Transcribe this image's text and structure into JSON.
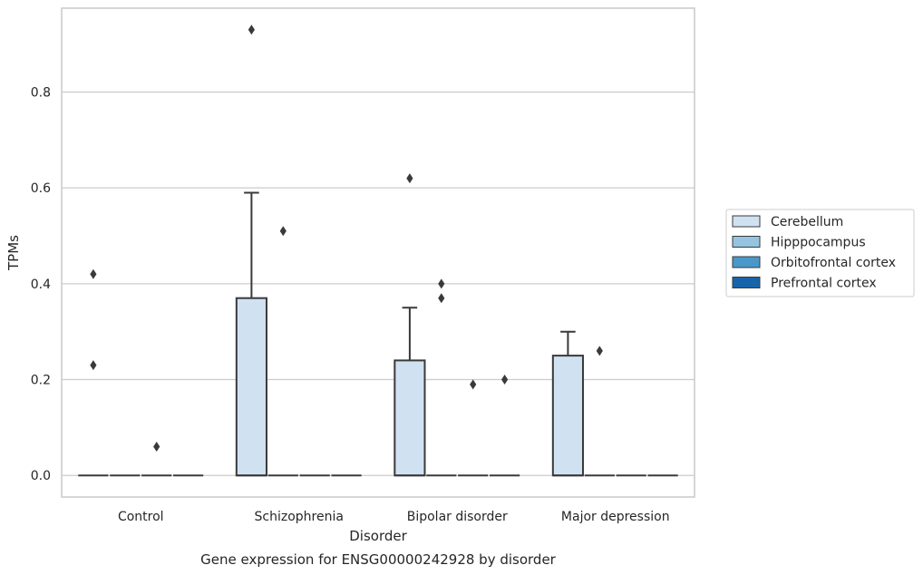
{
  "chart_data": {
    "type": "box",
    "title": "",
    "caption": "Gene expression for ENSG00000242928 by disorder",
    "xlabel": "Disorder",
    "ylabel": "TPMs",
    "ylim": [
      -0.045,
      0.975
    ],
    "yticks": [
      0.0,
      0.2,
      0.4,
      0.6,
      0.8
    ],
    "ytick_labels": [
      "0.0",
      "0.2",
      "0.4",
      "0.6",
      "0.8"
    ],
    "grid": "horizontal",
    "legend_position": "right",
    "categories": [
      "Control",
      "Schizophrenia",
      "Bipolar disorder",
      "Major depression"
    ],
    "series": [
      {
        "name": "Cerebellum",
        "color": "#d0e1f2",
        "boxes": [
          {
            "category": "Control",
            "q1": 0.0,
            "median": 0.0,
            "q3": 0.0,
            "whisker_low": 0.0,
            "whisker_high": 0.0,
            "outliers": [
              0.42,
              0.23
            ]
          },
          {
            "category": "Schizophrenia",
            "q1": 0.0,
            "median": 0.0,
            "q3": 0.37,
            "whisker_low": 0.0,
            "whisker_high": 0.59,
            "outliers": [
              0.93
            ]
          },
          {
            "category": "Bipolar disorder",
            "q1": 0.0,
            "median": 0.0,
            "q3": 0.24,
            "whisker_low": 0.0,
            "whisker_high": 0.35,
            "outliers": [
              0.62
            ]
          },
          {
            "category": "Major depression",
            "q1": 0.0,
            "median": 0.0,
            "q3": 0.25,
            "whisker_low": 0.0,
            "whisker_high": 0.3,
            "outliers": []
          }
        ]
      },
      {
        "name": "Hipppocampus",
        "color": "#94c4df",
        "boxes": [
          {
            "category": "Control",
            "q1": 0.0,
            "median": 0.0,
            "q3": 0.0,
            "whisker_low": 0.0,
            "whisker_high": 0.0,
            "outliers": []
          },
          {
            "category": "Schizophrenia",
            "q1": 0.0,
            "median": 0.0,
            "q3": 0.0,
            "whisker_low": 0.0,
            "whisker_high": 0.0,
            "outliers": [
              0.51
            ]
          },
          {
            "category": "Bipolar disorder",
            "q1": 0.0,
            "median": 0.0,
            "q3": 0.0,
            "whisker_low": 0.0,
            "whisker_high": 0.0,
            "outliers": [
              0.4,
              0.37
            ]
          },
          {
            "category": "Major depression",
            "q1": 0.0,
            "median": 0.0,
            "q3": 0.0,
            "whisker_low": 0.0,
            "whisker_high": 0.0,
            "outliers": [
              0.26
            ]
          }
        ]
      },
      {
        "name": "Orbitofrontal cortex",
        "color": "#4a98c9",
        "boxes": [
          {
            "category": "Control",
            "q1": 0.0,
            "median": 0.0,
            "q3": 0.0,
            "whisker_low": 0.0,
            "whisker_high": 0.0,
            "outliers": [
              0.06
            ]
          },
          {
            "category": "Schizophrenia",
            "q1": 0.0,
            "median": 0.0,
            "q3": 0.0,
            "whisker_low": 0.0,
            "whisker_high": 0.0,
            "outliers": []
          },
          {
            "category": "Bipolar disorder",
            "q1": 0.0,
            "median": 0.0,
            "q3": 0.0,
            "whisker_low": 0.0,
            "whisker_high": 0.0,
            "outliers": [
              0.19
            ]
          },
          {
            "category": "Major depression",
            "q1": 0.0,
            "median": 0.0,
            "q3": 0.0,
            "whisker_low": 0.0,
            "whisker_high": 0.0,
            "outliers": []
          }
        ]
      },
      {
        "name": "Prefrontal cortex",
        "color": "#1764ab",
        "boxes": [
          {
            "category": "Control",
            "q1": 0.0,
            "median": 0.0,
            "q3": 0.0,
            "whisker_low": 0.0,
            "whisker_high": 0.0,
            "outliers": []
          },
          {
            "category": "Schizophrenia",
            "q1": 0.0,
            "median": 0.0,
            "q3": 0.0,
            "whisker_low": 0.0,
            "whisker_high": 0.0,
            "outliers": []
          },
          {
            "category": "Bipolar disorder",
            "q1": 0.0,
            "median": 0.0,
            "q3": 0.0,
            "whisker_low": 0.0,
            "whisker_high": 0.0,
            "outliers": [
              0.2
            ]
          },
          {
            "category": "Major depression",
            "q1": 0.0,
            "median": 0.0,
            "q3": 0.0,
            "whisker_low": 0.0,
            "whisker_high": 0.0,
            "outliers": []
          }
        ]
      }
    ]
  }
}
